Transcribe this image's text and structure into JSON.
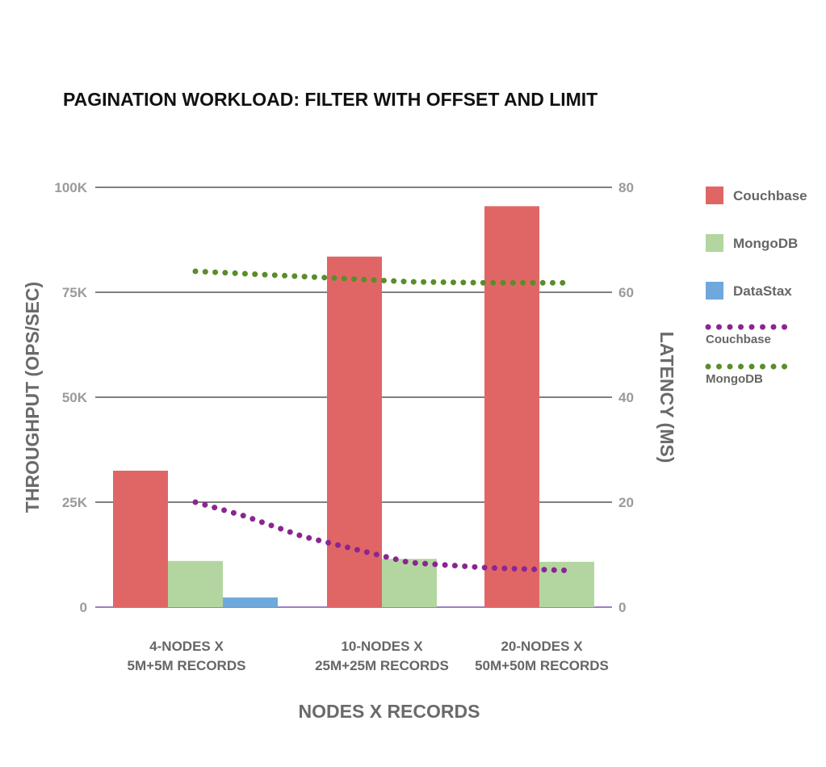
{
  "chart_data": {
    "type": "bar",
    "title": "PAGINATION WORKLOAD: FILTER WITH OFFSET AND LIMIT",
    "xlabel": "NODES X RECORDS",
    "ylabel": "THROUGHPUT (OPS/SEC)",
    "y2label": "LATENCY (MS)",
    "categories": [
      [
        "4-NODES X",
        "5M+5M RECORDS"
      ],
      [
        "10-NODES X",
        "25M+25M RECORDS"
      ],
      [
        "20-NODES X",
        "50M+50M RECORDS"
      ]
    ],
    "ylim": [
      0,
      100000
    ],
    "y_ticks": [
      0,
      25000,
      50000,
      75000,
      100000
    ],
    "y_tick_labels": [
      "0",
      "25K",
      "50K",
      "75K",
      "100K"
    ],
    "y2lim": [
      0,
      80
    ],
    "y2_ticks": [
      0,
      20,
      40,
      60,
      80
    ],
    "y2_tick_labels": [
      "0",
      "20",
      "40",
      "60",
      "80"
    ],
    "grid": true,
    "legend_position": "right",
    "series": [
      {
        "name": "Couchbase",
        "kind": "bar",
        "axis": "left",
        "color": "#e06666",
        "values": [
          32500,
          83500,
          95500
        ]
      },
      {
        "name": "MongoDB",
        "kind": "bar",
        "axis": "left",
        "color": "#b3d6a0",
        "values": [
          11000,
          11500,
          10800
        ]
      },
      {
        "name": "DataStax",
        "kind": "bar",
        "axis": "left",
        "color": "#6fa8dc",
        "values": [
          2300,
          null,
          null
        ]
      }
    ],
    "line_series": [
      {
        "name": "Couchbase",
        "kind": "dotted-line",
        "axis": "right",
        "color": "#8b2591",
        "x": [
          0,
          0.22,
          0.5,
          1,
          1.5,
          2
        ],
        "y": [
          20,
          17.5,
          13.5,
          8.5,
          7.5,
          7
        ]
      },
      {
        "name": "MongoDB",
        "kind": "dotted-line",
        "axis": "right",
        "color": "#5b8c2a",
        "x": [
          0,
          0.5,
          1,
          1.5,
          2
        ],
        "y": [
          64,
          63,
          62,
          61.8,
          61.8
        ]
      }
    ]
  }
}
